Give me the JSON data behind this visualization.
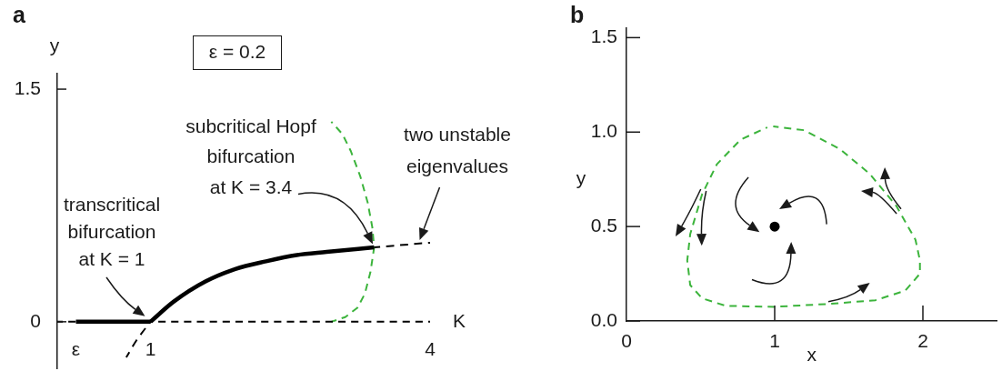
{
  "chart_data": [
    {
      "type": "line",
      "title": "a",
      "xlabel": "K",
      "ylabel": "y",
      "xlim": [
        0,
        4
      ],
      "ylim": [
        -0.3,
        1.6
      ],
      "xticks": [
        {
          "value": 0.2,
          "label": "ε"
        },
        1,
        4
      ],
      "yticks": [
        0,
        1.5
      ],
      "grid": false,
      "legend": false,
      "marker": "none",
      "series": [
        {
          "color": "#000000",
          "line_style": "dashed",
          "x": [
            0,
            4
          ],
          "values": [
            0,
            0
          ]
        },
        {
          "color": "#000000",
          "line_style": "solid",
          "x": [
            0.2,
            1
          ],
          "values": [
            0,
            0
          ]
        },
        {
          "color": "#000000",
          "line_style": "solid",
          "x": [
            1,
            1.25,
            1.59,
            1.91,
            2.24,
            2.57,
            2.89,
            3.4
          ],
          "values": [
            0,
            0.13,
            0.26,
            0.34,
            0.39,
            0.43,
            0.45,
            0.48
          ]
        },
        {
          "color": "#000000",
          "line_style": "dashed",
          "x": [
            0.74,
            0.85,
            1
          ],
          "values": [
            -0.23,
            -0.12,
            0
          ]
        },
        {
          "color": "#000000",
          "line_style": "dashed",
          "x": [
            3.4,
            4
          ],
          "values": [
            0.48,
            0.51
          ]
        },
        {
          "color": "#3cb43c",
          "line_style": "dashed",
          "x": [
            2.94,
            3.09,
            3.22,
            3.3,
            3.36,
            3.4,
            3.38,
            3.33,
            3.25,
            3.15,
            3.06,
            2.94
          ],
          "values": [
            0,
            0.03,
            0.09,
            0.18,
            0.32,
            0.48,
            0.61,
            0.77,
            0.94,
            1.1,
            1.21,
            1.29
          ]
        }
      ],
      "annotations": [
        "ε = 0.2",
        {
          "text": "transcritical\nbifurcation\nat K = 1",
          "x": 1,
          "y": 0
        },
        "subcritical Hopf\nbifurcation\nat K = 3.4",
        "two unstable\neigenvalues"
      ]
    },
    {
      "type": "line",
      "title": "b",
      "xlabel": "x",
      "ylabel": "y",
      "xlim": [
        0,
        2.5
      ],
      "ylim": [
        0,
        1.55
      ],
      "xticks": [
        0,
        1,
        2
      ],
      "yticks": [
        {
          "value": 0,
          "label": "0.0"
        },
        0.5,
        {
          "value": 1,
          "label": "1.0"
        },
        1.5
      ],
      "grid": false,
      "legend": false,
      "series": [
        {
          "color": "#3cb43c",
          "line_style": "dashed",
          "marker": "none",
          "x": [
            0.99,
            1.2,
            1.44,
            1.64,
            1.82,
            1.95,
            1.98,
            1.98,
            1.88,
            1.68,
            1.36,
            1.0,
            0.67,
            0.51,
            0.43,
            0.41,
            0.43,
            0.51,
            0.61,
            0.77,
            0.95
          ],
          "values": [
            1.03,
            1.01,
            0.91,
            0.78,
            0.61,
            0.43,
            0.32,
            0.25,
            0.16,
            0.11,
            0.09,
            0.075,
            0.08,
            0.12,
            0.19,
            0.32,
            0.46,
            0.67,
            0.83,
            0.96,
            1.025
          ]
        },
        {
          "type": "scatter",
          "color": "#000000",
          "marker": "circle",
          "x": [
            1
          ],
          "values": [
            0.5
          ]
        }
      ]
    }
  ]
}
